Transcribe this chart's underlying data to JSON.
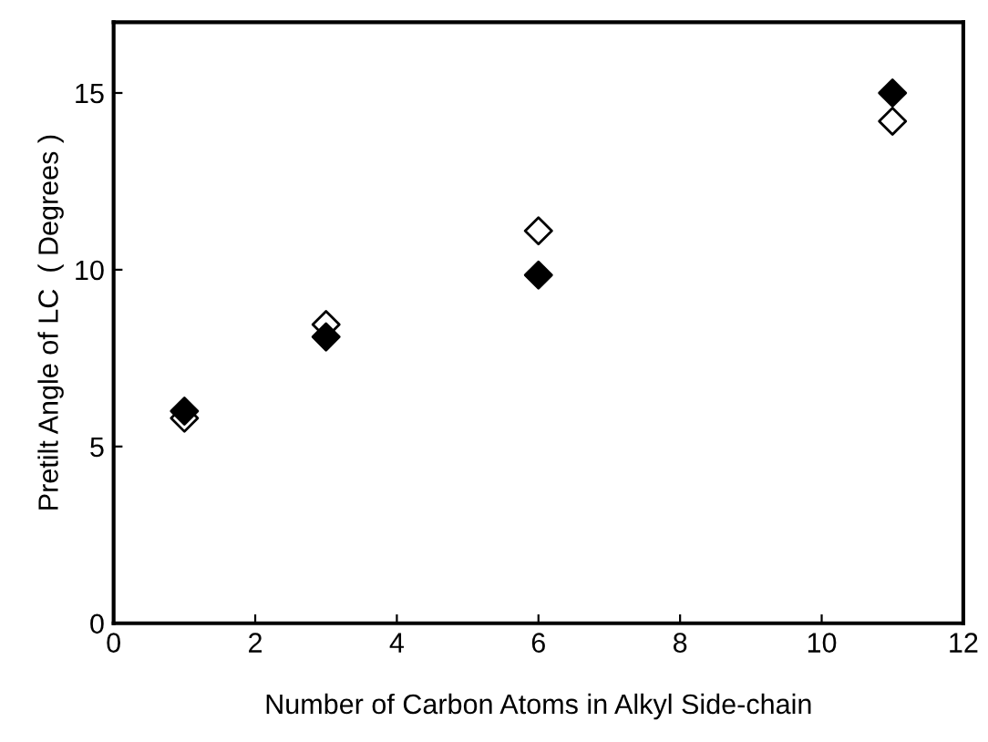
{
  "chart_data": {
    "type": "scatter",
    "xlabel": "Number of Carbon Atoms in Alkyl Side-chain",
    "ylabel": "Pretilt Angle of LC  ( Degrees )",
    "marker": "diamond",
    "grid": false,
    "legend": false,
    "series": [
      {
        "color": "#000000",
        "x": [
          1,
          3,
          6,
          11
        ],
        "values": [
          6.0,
          8.1,
          9.85,
          15.0
        ]
      },
      {
        "color": "#ffffff",
        "x": [
          1,
          3,
          6,
          11
        ],
        "values": [
          5.8,
          8.45,
          11.1,
          14.2
        ]
      }
    ],
    "xlim": [
      0,
      12
    ],
    "xticks": [
      0,
      2,
      4,
      6,
      8,
      10,
      12
    ],
    "ylim": [
      0,
      17
    ],
    "yticks": [
      0,
      5,
      10,
      15
    ]
  }
}
